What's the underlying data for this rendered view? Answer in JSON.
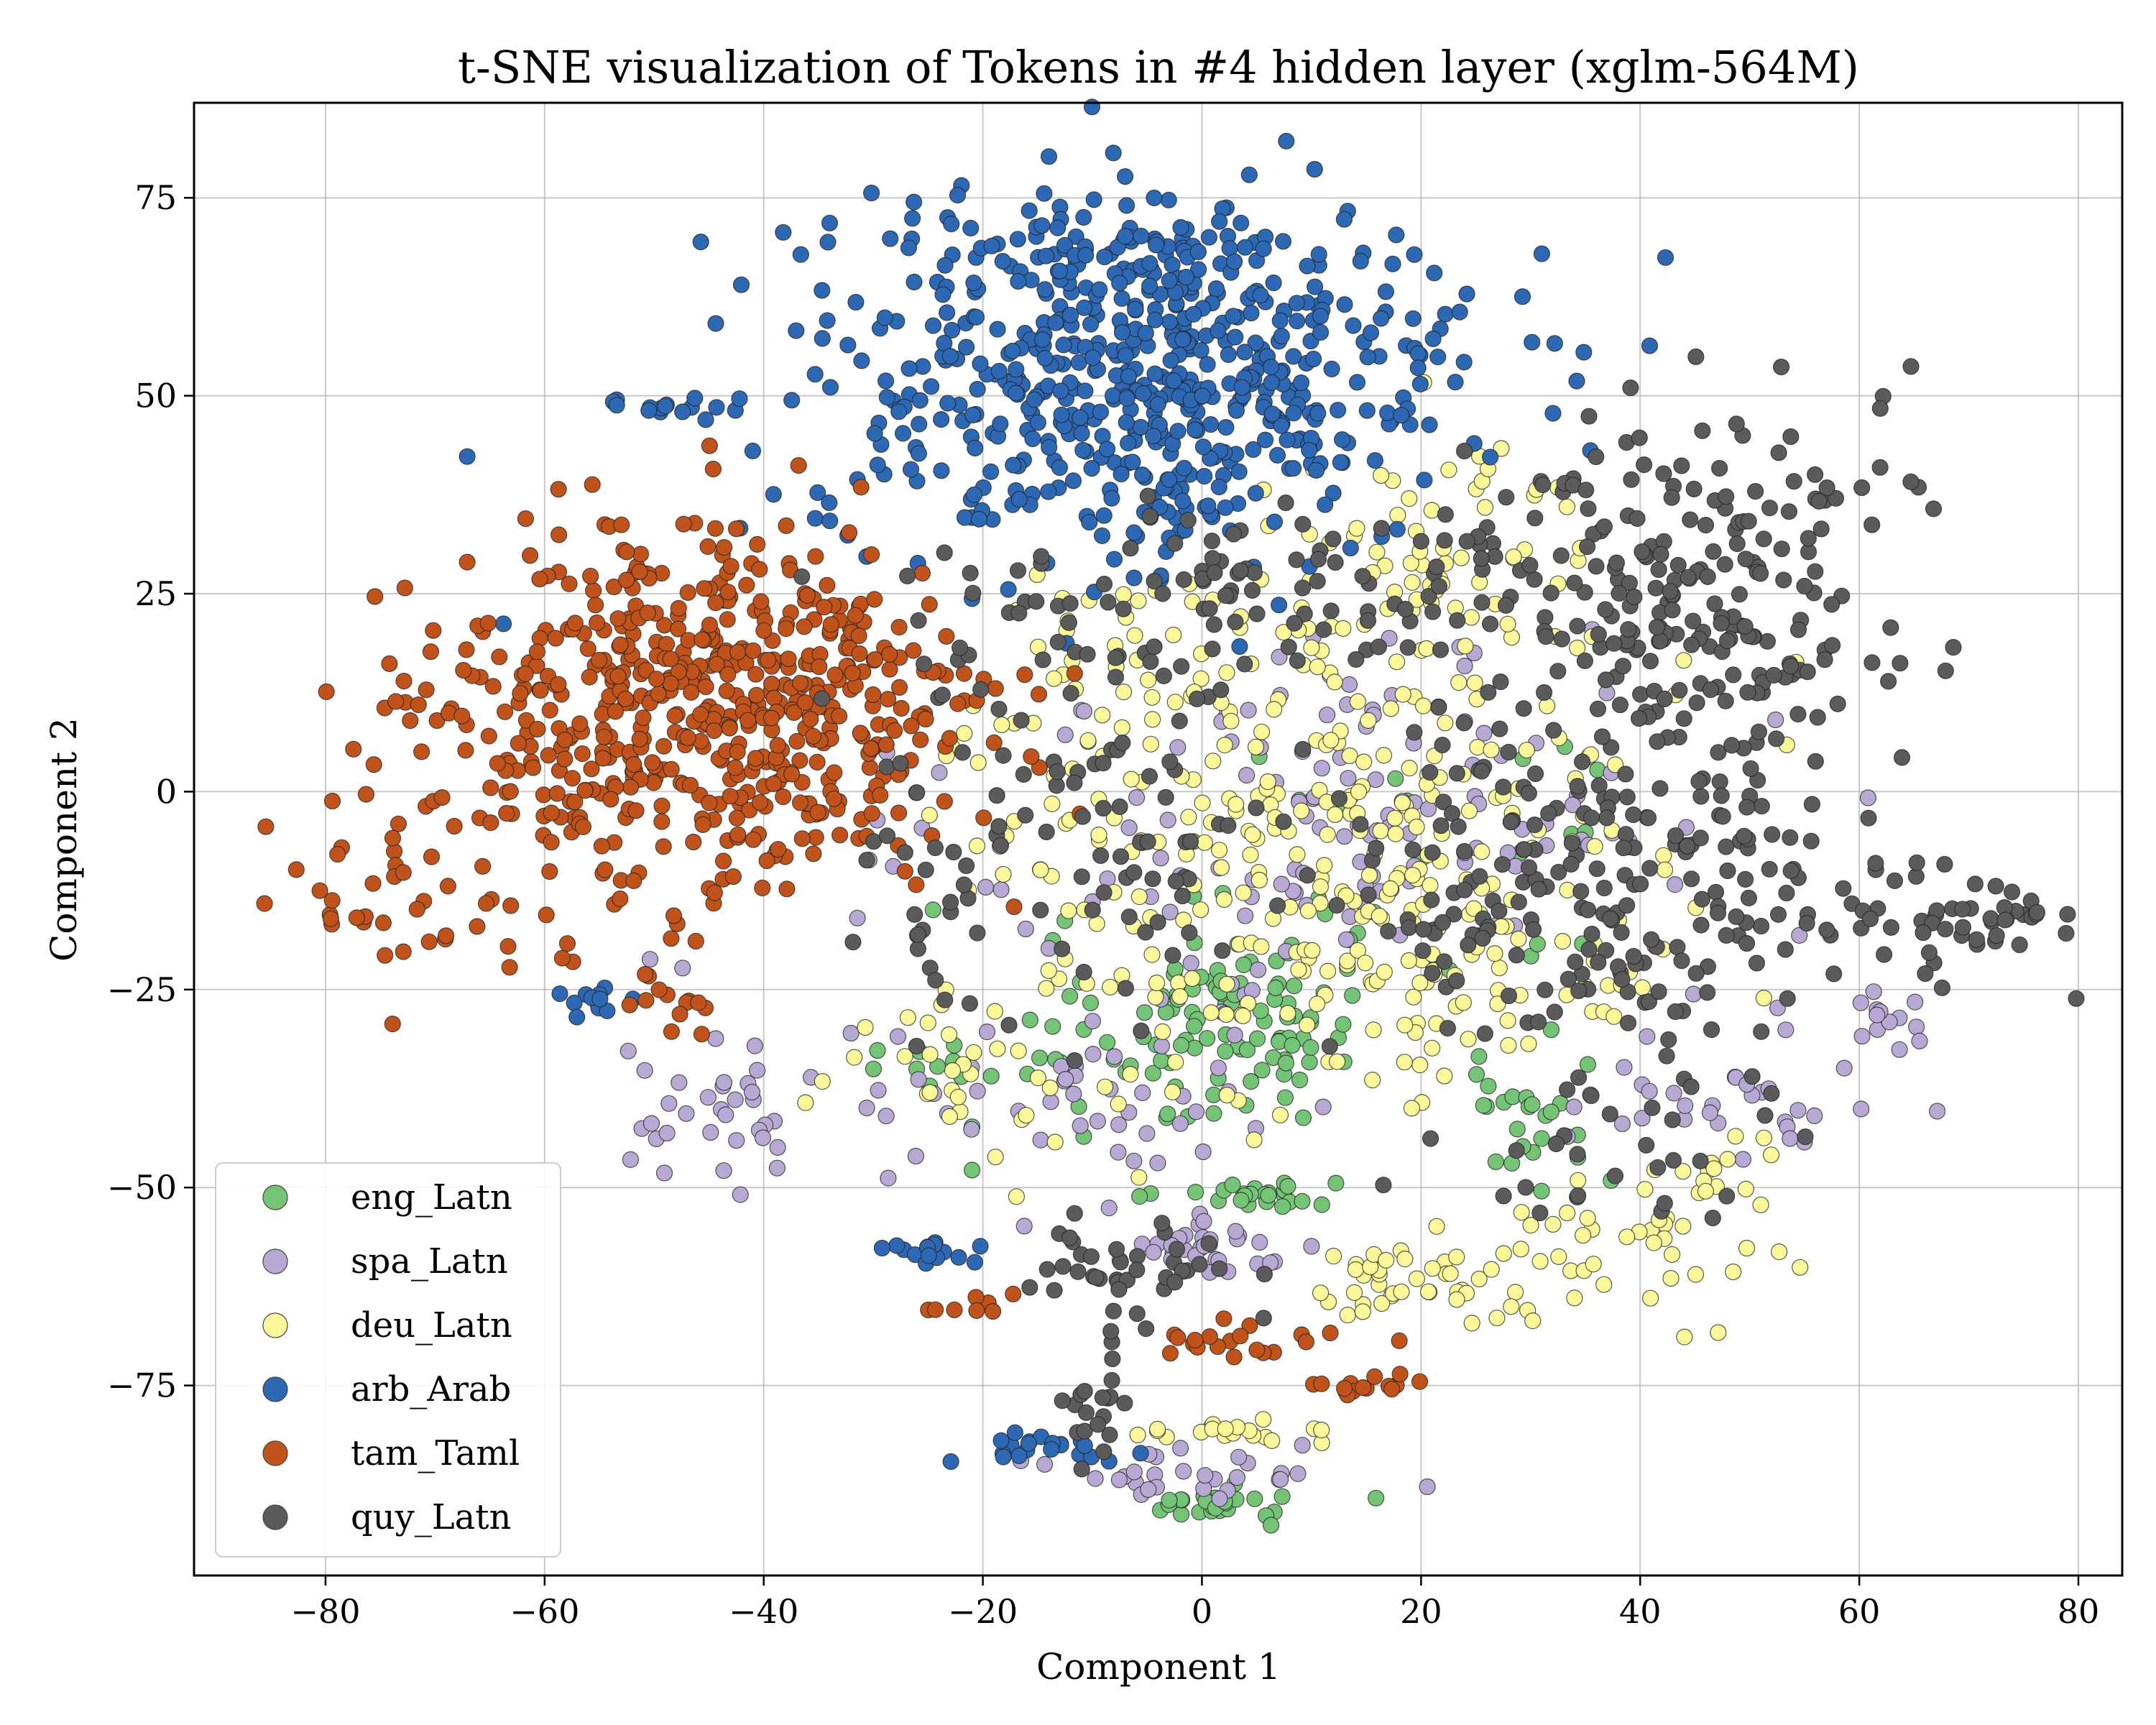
{
  "chart_data": {
    "type": "scatter",
    "title": "t-SNE visualization of Tokens in #4 hidden layer (xglm-564M)",
    "xlabel": "Component 1",
    "ylabel": "Component 2",
    "xlim": [
      -92,
      84
    ],
    "ylim": [
      -99,
      87
    ],
    "xticks": [
      -80,
      -60,
      -40,
      -20,
      0,
      20,
      40,
      60,
      80
    ],
    "yticks": [
      -75,
      -50,
      -25,
      0,
      25,
      50,
      75
    ],
    "grid": true,
    "legend_position": "lower-left",
    "series": [
      {
        "name": "eng_Latn",
        "color": "#74c476",
        "clusters": [
          {
            "cx": 2,
            "cy": -28,
            "sx": 6,
            "sy": 6,
            "n": 80
          },
          {
            "cx": 30,
            "cy": -40,
            "sx": 4,
            "sy": 5,
            "n": 25
          },
          {
            "cx": 4,
            "cy": -51,
            "sx": 4,
            "sy": 1,
            "n": 25
          },
          {
            "cx": 3,
            "cy": -90,
            "sx": 4,
            "sy": 1,
            "n": 25
          },
          {
            "cx": 15,
            "cy": -10,
            "sx": 14,
            "sy": 12,
            "n": 30
          },
          {
            "cx": -12,
            "cy": -35,
            "sx": 12,
            "sy": 6,
            "n": 35
          }
        ]
      },
      {
        "name": "spa_Latn",
        "color": "#b8a9d4",
        "clusters": [
          {
            "cx": 15,
            "cy": -5,
            "sx": 18,
            "sy": 13,
            "n": 140
          },
          {
            "cx": -45,
            "cy": -38,
            "sx": 5,
            "sy": 6,
            "n": 35
          },
          {
            "cx": -10,
            "cy": -40,
            "sx": 12,
            "sy": 5,
            "n": 45
          },
          {
            "cx": 0,
            "cy": -57,
            "sx": 6,
            "sy": 2,
            "n": 35
          },
          {
            "cx": 0,
            "cy": -86,
            "sx": 7,
            "sy": 2,
            "n": 30
          },
          {
            "cx": 46,
            "cy": -40,
            "sx": 8,
            "sy": 3,
            "n": 30
          },
          {
            "cx": 62,
            "cy": -30,
            "sx": 3,
            "sy": 3,
            "n": 15
          }
        ]
      },
      {
        "name": "deu_Latn",
        "color": "#fbf89a",
        "clusters": [
          {
            "cx": 8,
            "cy": 2,
            "sx": 16,
            "sy": 14,
            "n": 260
          },
          {
            "cx": 22,
            "cy": 28,
            "sx": 8,
            "sy": 10,
            "n": 60
          },
          {
            "cx": 20,
            "cy": -25,
            "sx": 12,
            "sy": 8,
            "n": 90
          },
          {
            "cx": -20,
            "cy": -35,
            "sx": 8,
            "sy": 6,
            "n": 40
          },
          {
            "cx": 18,
            "cy": -62,
            "sx": 5,
            "sy": 3,
            "n": 40
          },
          {
            "cx": 40,
            "cy": -58,
            "sx": 7,
            "sy": 4,
            "n": 40
          },
          {
            "cx": 48,
            "cy": -48,
            "sx": 3,
            "sy": 2,
            "n": 15
          },
          {
            "cx": 3,
            "cy": -81,
            "sx": 4,
            "sy": 1,
            "n": 20
          }
        ]
      },
      {
        "name": "arb_Arab",
        "color": "#2c68b3",
        "clusters": [
          {
            "cx": -5,
            "cy": 52,
            "sx": 15,
            "sy": 11,
            "n": 600
          },
          {
            "cx": -10,
            "cy": 68,
            "sx": 10,
            "sy": 4,
            "n": 60
          },
          {
            "cx": -49,
            "cy": 49,
            "sx": 4,
            "sy": 1,
            "n": 15
          },
          {
            "cx": -25,
            "cy": -58,
            "sx": 3,
            "sy": 1,
            "n": 15
          },
          {
            "cx": -15,
            "cy": -83,
            "sx": 4,
            "sy": 1,
            "n": 20
          },
          {
            "cx": -56,
            "cy": -26,
            "sx": 2,
            "sy": 2,
            "n": 12
          }
        ]
      },
      {
        "name": "tam_Taml",
        "color": "#c1531a",
        "clusters": [
          {
            "cx": -43,
            "cy": 10,
            "sx": 12,
            "sy": 11,
            "n": 520
          },
          {
            "cx": -62,
            "cy": 5,
            "sx": 9,
            "sy": 14,
            "n": 90
          },
          {
            "cx": -75,
            "cy": -10,
            "sx": 5,
            "sy": 8,
            "n": 30
          },
          {
            "cx": 5,
            "cy": -69,
            "sx": 5,
            "sy": 1,
            "n": 20
          },
          {
            "cx": 15,
            "cy": -75,
            "sx": 3,
            "sy": 1,
            "n": 15
          },
          {
            "cx": -47,
            "cy": -27,
            "sx": 2,
            "sy": 2,
            "n": 12
          },
          {
            "cx": -22,
            "cy": -65,
            "sx": 2,
            "sy": 1,
            "n": 8
          }
        ]
      },
      {
        "name": "quy_Latn",
        "color": "#5b5b5b",
        "clusters": [
          {
            "cx": 45,
            "cy": 25,
            "sx": 9,
            "sy": 14,
            "n": 220
          },
          {
            "cx": 35,
            "cy": -10,
            "sx": 12,
            "sy": 12,
            "n": 200
          },
          {
            "cx": 5,
            "cy": 25,
            "sx": 15,
            "sy": 6,
            "n": 120
          },
          {
            "cx": -15,
            "cy": -5,
            "sx": 10,
            "sy": 12,
            "n": 100
          },
          {
            "cx": 60,
            "cy": -15,
            "sx": 8,
            "sy": 4,
            "n": 50
          },
          {
            "cx": -5,
            "cy": -60,
            "sx": 5,
            "sy": 3,
            "n": 40
          },
          {
            "cx": -10,
            "cy": -78,
            "sx": 2,
            "sy": 4,
            "n": 20
          },
          {
            "cx": 40,
            "cy": -45,
            "sx": 8,
            "sy": 5,
            "n": 30
          },
          {
            "cx": 72,
            "cy": -17,
            "sx": 3,
            "sy": 2,
            "n": 20
          }
        ]
      }
    ]
  }
}
